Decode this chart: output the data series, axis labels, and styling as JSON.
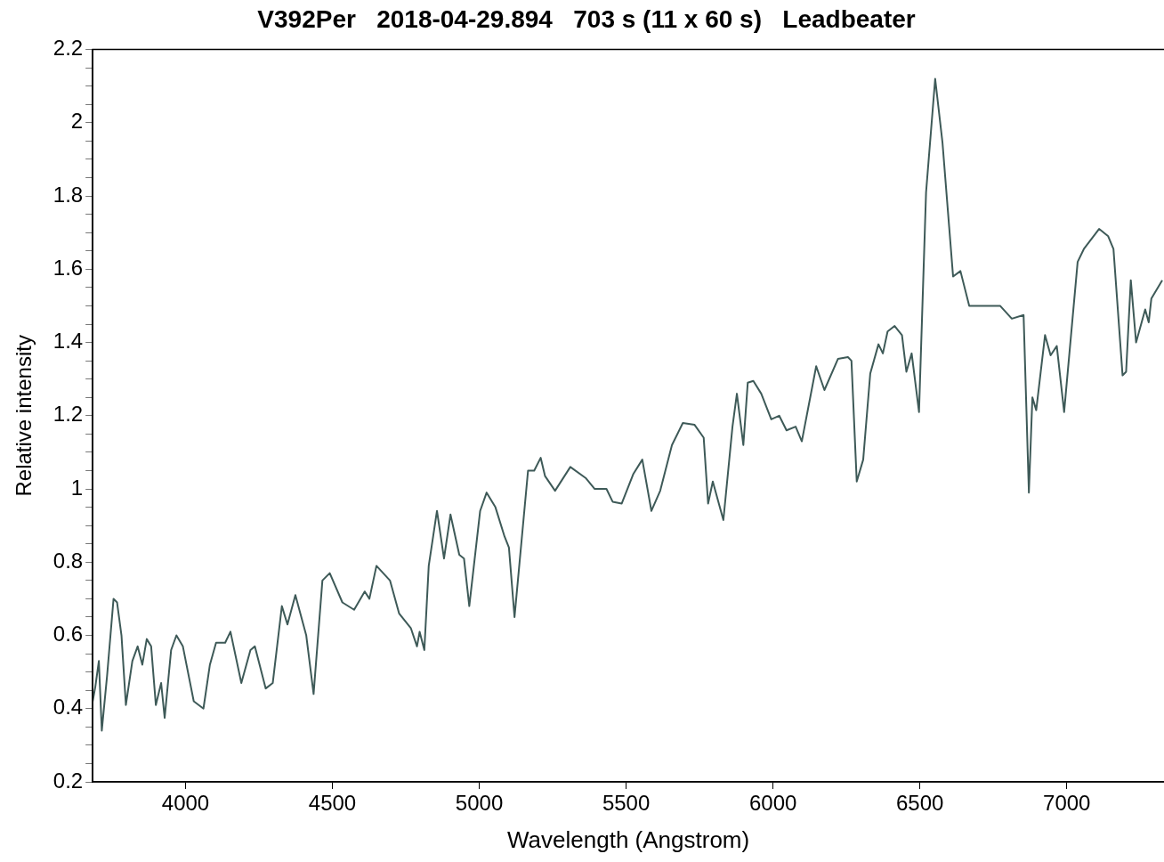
{
  "chart_data": {
    "type": "line",
    "title": "V392Per   2018-04-29.894   703 s (11 x 60 s)   Leadbeater",
    "xlabel": "Wavelength (Angstrom)",
    "ylabel": "Relative intensity",
    "xlim": [
      3684,
      7331
    ],
    "ylim": [
      0.2,
      2.2
    ],
    "xticks": [
      4000,
      4500,
      5000,
      5500,
      6000,
      6500,
      7000
    ],
    "yticks": [
      0.2,
      {
        "value": 0.25,
        "label": null
      },
      {
        "value": 0.3,
        "label": null
      },
      {
        "value": 0.35,
        "label": null
      },
      0.4,
      {
        "value": 0.45,
        "label": null
      },
      {
        "value": 0.5,
        "label": null
      },
      {
        "value": 0.55,
        "label": null
      },
      0.6,
      {
        "value": 0.65,
        "label": null
      },
      {
        "value": 0.7,
        "label": null
      },
      {
        "value": 0.75,
        "label": null
      },
      0.8,
      {
        "value": 0.85,
        "label": null
      },
      {
        "value": 0.9,
        "label": null
      },
      {
        "value": 0.95,
        "label": null
      },
      1,
      {
        "value": 1.05,
        "label": null
      },
      {
        "value": 1.1,
        "label": null
      },
      {
        "value": 1.15,
        "label": null
      },
      1.2,
      {
        "value": 1.25,
        "label": null
      },
      {
        "value": 1.3,
        "label": null
      },
      {
        "value": 1.35,
        "label": null
      },
      1.4,
      {
        "value": 1.45,
        "label": null
      },
      {
        "value": 1.5,
        "label": null
      },
      {
        "value": 1.55,
        "label": null
      },
      1.6,
      {
        "value": 1.65,
        "label": null
      },
      {
        "value": 1.7,
        "label": null
      },
      {
        "value": 1.75,
        "label": null
      },
      1.8,
      {
        "value": 1.85,
        "label": null
      },
      {
        "value": 1.9,
        "label": null
      },
      {
        "value": 1.95,
        "label": null
      },
      2,
      {
        "value": 2.05,
        "label": null
      },
      {
        "value": 2.1,
        "label": null
      },
      {
        "value": 2.15,
        "label": null
      },
      2.2
    ],
    "grid": false,
    "legend": false,
    "marker": "none",
    "line_style": "solid",
    "series": [
      {
        "color": "#3e5a58",
        "x": [
          3684,
          3693,
          3705,
          3715,
          3733,
          3755,
          3767,
          3782,
          3797,
          3819,
          3837,
          3853,
          3868,
          3883,
          3899,
          3917,
          3929,
          3951,
          3969,
          3991,
          4028,
          4061,
          4083,
          4104,
          4135,
          4153,
          4190,
          4221,
          4236,
          4273,
          4297,
          4328,
          4347,
          4374,
          4411,
          4436,
          4466,
          4491,
          4534,
          4574,
          4610,
          4626,
          4650,
          4696,
          4727,
          4767,
          4788,
          4797,
          4813,
          4828,
          4856,
          4880,
          4902,
          4932,
          4948,
          4966,
          5003,
          5025,
          5055,
          5086,
          5101,
          5120,
          5166,
          5187,
          5209,
          5224,
          5258,
          5310,
          5362,
          5393,
          5433,
          5454,
          5485,
          5524,
          5555,
          5586,
          5616,
          5656,
          5693,
          5733,
          5764,
          5779,
          5795,
          5831,
          5862,
          5877,
          5899,
          5914,
          5933,
          5960,
          5994,
          6021,
          6046,
          6077,
          6098,
          6147,
          6175,
          6221,
          6255,
          6267,
          6285,
          6307,
          6331,
          6359,
          6374,
          6390,
          6414,
          6439,
          6454,
          6472,
          6497,
          6521,
          6552,
          6577,
          6613,
          6638,
          6668,
          6712,
          6742,
          6773,
          6813,
          6853,
          6871,
          6883,
          6896,
          6926,
          6945,
          6966,
          6991,
          7037,
          7058,
          7110,
          7141,
          7159,
          7190,
          7202,
          7218,
          7236,
          7267,
          7279,
          7288,
          7325
        ],
        "values": [
          0.42,
          0.46,
          0.53,
          0.34,
          0.49,
          0.7,
          0.69,
          0.6,
          0.41,
          0.53,
          0.57,
          0.52,
          0.59,
          0.57,
          0.41,
          0.47,
          0.375,
          0.56,
          0.6,
          0.57,
          0.42,
          0.4,
          0.52,
          0.58,
          0.58,
          0.61,
          0.47,
          0.56,
          0.57,
          0.455,
          0.47,
          0.68,
          0.63,
          0.71,
          0.6,
          0.44,
          0.75,
          0.77,
          0.69,
          0.67,
          0.72,
          0.7,
          0.79,
          0.75,
          0.66,
          0.62,
          0.57,
          0.61,
          0.56,
          0.79,
          0.94,
          0.81,
          0.93,
          0.82,
          0.81,
          0.68,
          0.94,
          0.99,
          0.95,
          0.87,
          0.84,
          0.65,
          1.05,
          1.05,
          1.085,
          1.035,
          0.995,
          1.06,
          1.03,
          1,
          1,
          0.965,
          0.96,
          1.04,
          1.08,
          0.94,
          0.995,
          1.12,
          1.18,
          1.175,
          1.14,
          0.96,
          1.02,
          0.915,
          1.17,
          1.26,
          1.12,
          1.29,
          1.295,
          1.26,
          1.19,
          1.2,
          1.16,
          1.17,
          1.13,
          1.335,
          1.27,
          1.355,
          1.36,
          1.35,
          1.02,
          1.08,
          1.315,
          1.395,
          1.37,
          1.43,
          1.445,
          1.42,
          1.32,
          1.37,
          1.21,
          1.81,
          2.12,
          1.945,
          1.58,
          1.595,
          1.5,
          1.5,
          1.5,
          1.5,
          1.465,
          1.475,
          0.99,
          1.25,
          1.215,
          1.42,
          1.365,
          1.39,
          1.21,
          1.62,
          1.655,
          1.71,
          1.69,
          1.655,
          1.31,
          1.32,
          1.57,
          1.4,
          1.49,
          1.455,
          1.52,
          1.57
        ]
      }
    ]
  }
}
